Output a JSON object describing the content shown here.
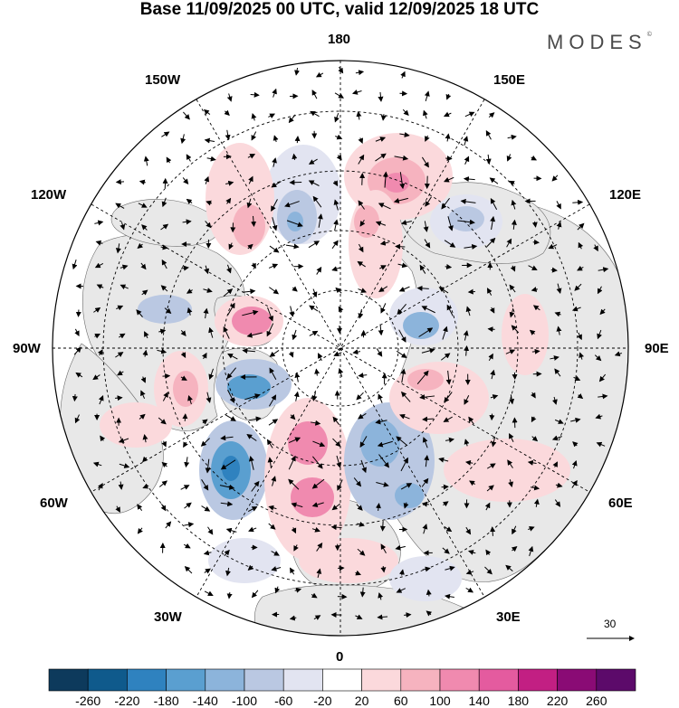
{
  "title": "Base 11/09/2025 00 UTC, valid 12/09/2025 18 UTC",
  "brand": "MODES",
  "brand_mark": "©",
  "longitude_labels": {
    "top": "180",
    "bottom": "0",
    "left": "90W",
    "right": "90E",
    "lon150w": "150W",
    "lon150e": "150E",
    "lon120w": "120W",
    "lon120e": "120E",
    "lon60w": "60W",
    "lon60e": "60E",
    "lon30w": "30W",
    "lon30e": "30E"
  },
  "reference_vector": {
    "value": "30"
  },
  "colorbar": {
    "labels": [
      "-260",
      "-220",
      "-180",
      "-140",
      "-100",
      "-60",
      "-20",
      "20",
      "60",
      "100",
      "140",
      "180",
      "220",
      "260"
    ],
    "colors": [
      "#0d3a5c",
      "#0f5a8c",
      "#2f82bf",
      "#5a9fd0",
      "#8cb4db",
      "#bac8e2",
      "#e2e4f1",
      "#ffffff",
      "#fbd9dc",
      "#f6b3bf",
      "#f08aaf",
      "#e45b9f",
      "#c21f83",
      "#8a0b75",
      "#5c0a6a"
    ]
  }
}
